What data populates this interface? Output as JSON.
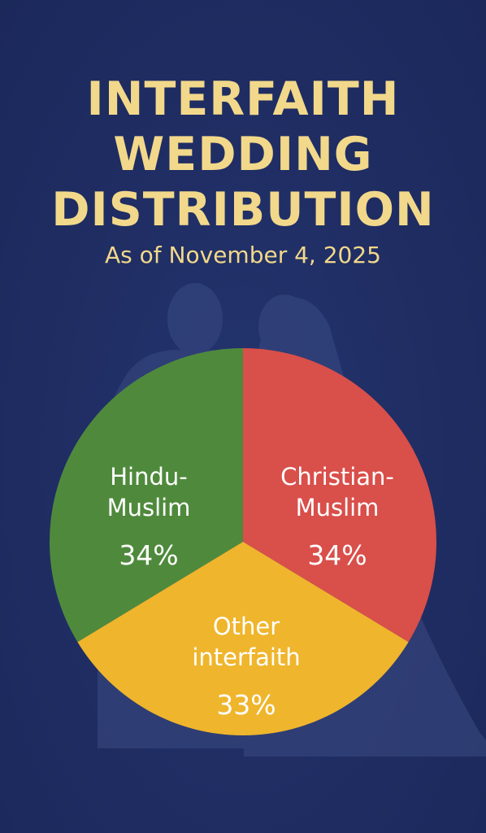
{
  "chart_data": {
    "type": "pie",
    "title": [
      "INTERFAITH",
      "WEDDING",
      "DISTRIBUTION"
    ],
    "subtitle": "As of November 4, 2025",
    "slices": [
      {
        "label_lines": [
          "Hindu-",
          "Muslim"
        ],
        "value": 34,
        "value_label": "34%",
        "color": "#4f8a3c"
      },
      {
        "label_lines": [
          "Christian-",
          "Muslim"
        ],
        "value": 34,
        "value_label": "34%",
        "color": "#d94f4a"
      },
      {
        "label_lines": [
          "Other",
          "interfaith"
        ],
        "value": 33,
        "value_label": "33%",
        "color": "#efb52c"
      }
    ]
  },
  "colors": {
    "background": "#1f2d63",
    "title": "#f2d88a",
    "silhouette": "#3a4a82"
  }
}
